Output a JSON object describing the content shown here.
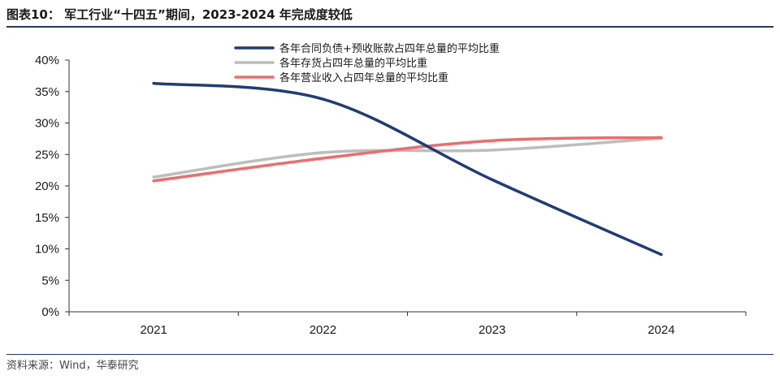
{
  "figure": {
    "title": "图表10：  军工行业“十四五”期间，2023-2024 年完成度较低",
    "source": "资料来源：Wind，华泰研究"
  },
  "chart_data": {
    "type": "line",
    "title": "军工行业“十四五”期间，2023-2024 年完成度较低",
    "categories": [
      "2021",
      "2022",
      "2023",
      "2024"
    ],
    "ylim": [
      0,
      40
    ],
    "ytick_values": [
      0,
      5,
      10,
      15,
      20,
      25,
      30,
      35,
      40
    ],
    "ytick_labels": [
      "0%",
      "5%",
      "10%",
      "15%",
      "20%",
      "25%",
      "30%",
      "35%",
      "40%"
    ],
    "xlabel": "",
    "ylabel": "",
    "grid": false,
    "legend_position": "top",
    "series": [
      {
        "name": "各年合同负债+预收账款占四年总量的平均比重",
        "color": "#1f3b7a",
        "values": [
          36.3,
          33.8,
          21.0,
          9.1
        ]
      },
      {
        "name": "各年存货占四年总量的平均比重",
        "color": "#bdbdbd",
        "values": [
          21.4,
          25.3,
          25.7,
          27.6
        ]
      },
      {
        "name": "各年营业收入占四年总量的平均比重",
        "color": "#f06b6b",
        "values": [
          20.8,
          24.4,
          27.2,
          27.7
        ]
      }
    ]
  }
}
